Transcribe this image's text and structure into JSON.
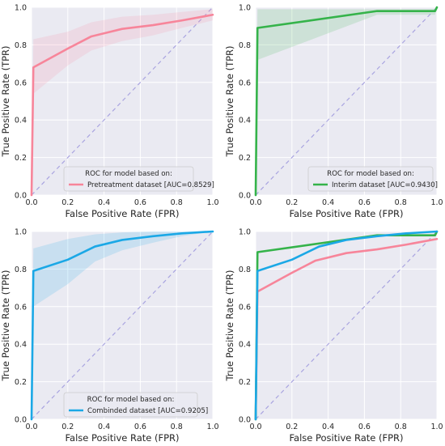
{
  "chart_data": [
    {
      "type": "line",
      "xlabel": "False Positive Rate (FPR)",
      "ylabel": "True Positive Rate (TPR)",
      "xlim": [
        0,
        1
      ],
      "ylim": [
        0,
        1
      ],
      "xticks": [
        "0.0",
        "0.2",
        "0.4",
        "0.6",
        "0.8",
        "1.0"
      ],
      "yticks": [
        "0.0",
        "0.2",
        "0.4",
        "0.6",
        "0.8",
        "1.0"
      ],
      "grid": true,
      "legend_title": "ROC for model based on:",
      "legend_position": "lower-right",
      "series": [
        {
          "name": "Pretreatment dataset [AUC=0.8529]",
          "color": "#f7859a",
          "x": [
            0,
            0.01,
            0.2,
            0.33,
            0.5,
            0.67,
            0.83,
            1.0
          ],
          "y": [
            0,
            0.68,
            0.78,
            0.845,
            0.885,
            0.905,
            0.93,
            0.96
          ],
          "band_low": [
            0,
            0.54,
            0.69,
            0.77,
            0.82,
            0.85,
            0.89,
            0.93
          ],
          "band_high": [
            0,
            0.83,
            0.87,
            0.92,
            0.95,
            0.96,
            0.975,
            0.99
          ]
        }
      ]
    },
    {
      "type": "line",
      "xlabel": "False Positive Rate (FPR)",
      "ylabel": "True Positive Rate (TPR)",
      "xlim": [
        0,
        1
      ],
      "ylim": [
        0,
        1
      ],
      "xticks": [
        "0.0",
        "0.2",
        "0.4",
        "0.6",
        "0.8",
        "1.0"
      ],
      "yticks": [
        "0.0",
        "0.2",
        "0.4",
        "0.6",
        "0.8",
        "1.0"
      ],
      "grid": true,
      "legend_title": "ROC for model based on:",
      "legend_position": "lower-right",
      "series": [
        {
          "name": "Interim dataset [AUC=0.9430]",
          "color": "#35b34a",
          "x": [
            0,
            0.01,
            0.67,
            0.99,
            1.0
          ],
          "y": [
            0,
            0.89,
            0.98,
            0.98,
            1.0
          ],
          "band_low": [
            0,
            0.72,
            0.96,
            0.96,
            1.0
          ],
          "band_high": [
            0,
            0.99,
            0.99,
            0.99,
            1.0
          ]
        }
      ]
    },
    {
      "type": "line",
      "xlabel": "False Positive Rate (FPR)",
      "ylabel": "True Positive Rate (TPR)",
      "xlim": [
        0,
        1
      ],
      "ylim": [
        0,
        1
      ],
      "xticks": [
        "0.0",
        "0.2",
        "0.4",
        "0.6",
        "0.8",
        "1.0"
      ],
      "yticks": [
        "0.0",
        "0.2",
        "0.4",
        "0.6",
        "0.8",
        "1.0"
      ],
      "grid": true,
      "legend_title": "ROC for model based on:",
      "legend_position": "lower-right",
      "series": [
        {
          "name": "Combinded dataset [AUC=0.9205]",
          "color": "#1ba8e6",
          "x": [
            0,
            0.01,
            0.2,
            0.35,
            0.5,
            0.67,
            0.83,
            1.0
          ],
          "y": [
            0,
            0.79,
            0.85,
            0.92,
            0.955,
            0.975,
            0.99,
            1.0
          ],
          "band_low": [
            0,
            0.6,
            0.72,
            0.84,
            0.9,
            0.94,
            0.975,
            1.0
          ],
          "band_high": [
            0,
            0.91,
            0.96,
            0.985,
            0.995,
            1.0,
            1.0,
            1.0
          ]
        }
      ]
    },
    {
      "type": "line",
      "xlabel": "False Positive Rate (FPR)",
      "ylabel": "True Positive Rate (TPR)",
      "xlim": [
        0,
        1
      ],
      "ylim": [
        0,
        1
      ],
      "xticks": [
        "0.0",
        "0.2",
        "0.4",
        "0.6",
        "0.8",
        "1.0"
      ],
      "yticks": [
        "0.0",
        "0.2",
        "0.4",
        "0.6",
        "0.8",
        "1.0"
      ],
      "grid": true,
      "series": [
        {
          "color": "#f7859a",
          "x": [
            0,
            0.01,
            0.2,
            0.33,
            0.5,
            0.67,
            0.83,
            1.0
          ],
          "y": [
            0,
            0.68,
            0.78,
            0.845,
            0.885,
            0.905,
            0.93,
            0.96
          ]
        },
        {
          "color": "#35b34a",
          "x": [
            0,
            0.01,
            0.67,
            0.99,
            1.0
          ],
          "y": [
            0,
            0.89,
            0.98,
            0.98,
            1.0
          ]
        },
        {
          "color": "#1ba8e6",
          "x": [
            0,
            0.01,
            0.2,
            0.35,
            0.5,
            0.67,
            0.83,
            1.0
          ],
          "y": [
            0,
            0.79,
            0.85,
            0.92,
            0.955,
            0.975,
            0.99,
            1.0
          ]
        }
      ]
    }
  ],
  "colors": {
    "plot_background": "#eaeaf2",
    "grid": "#ffffff",
    "diagonal": "#a9a4e0"
  }
}
